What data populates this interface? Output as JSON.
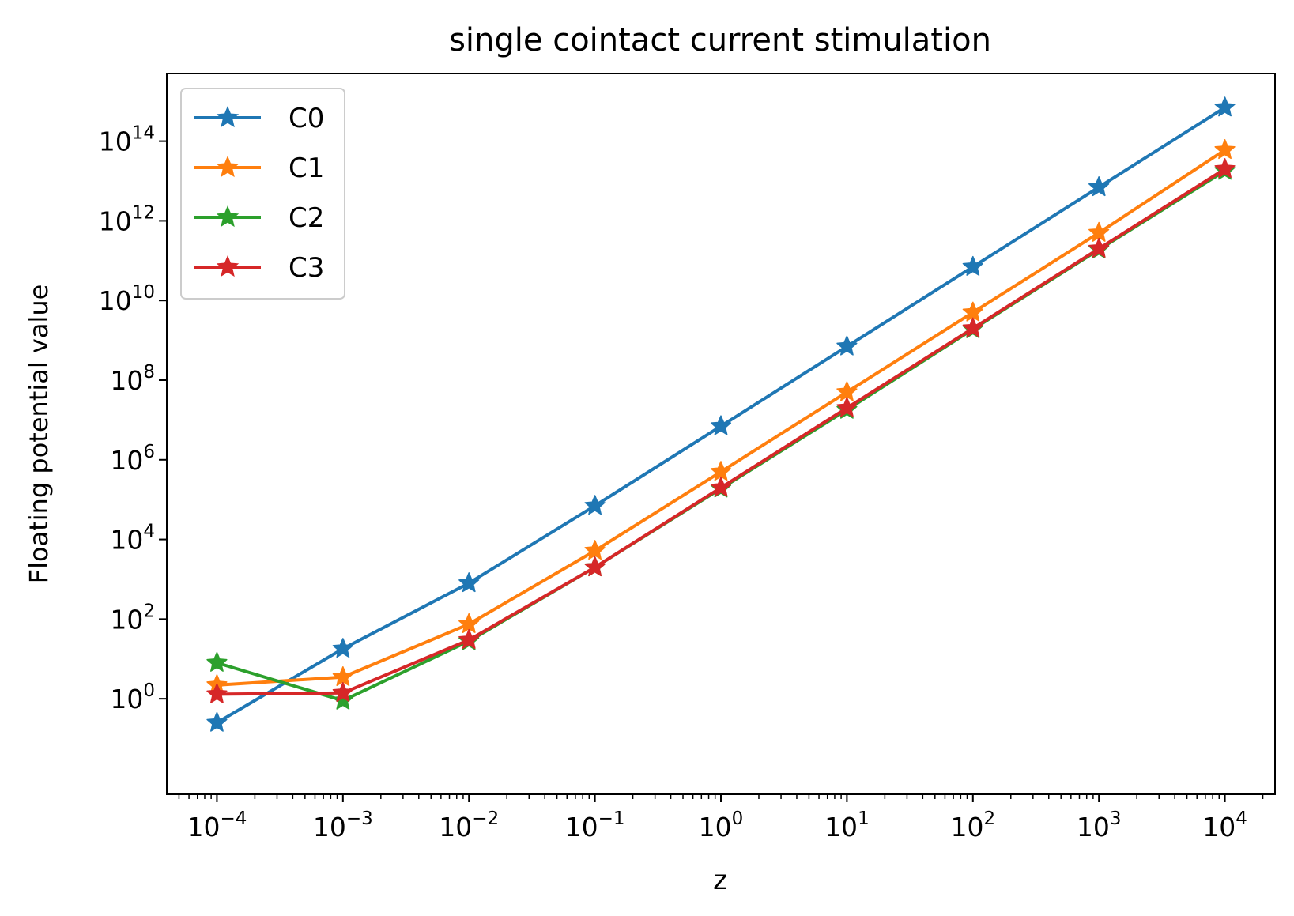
{
  "chart_data": {
    "type": "line",
    "title": "single cointact current stimulation",
    "xlabel": "z",
    "ylabel": "Floating potential value",
    "xscale": "log",
    "yscale": "log",
    "xlim": [
      4e-05,
      25000
    ],
    "ylim": [
      0.004,
      5000000000000000.0
    ],
    "grid": false,
    "legend_position": "top-left",
    "marker": "star",
    "x": [
      0.0001,
      0.001,
      0.01,
      0.1,
      1,
      10,
      100,
      1000,
      10000
    ],
    "x_ticks": [
      {
        "base": "10",
        "exp": "−4",
        "value": 0.0001
      },
      {
        "base": "10",
        "exp": "−3",
        "value": 0.001
      },
      {
        "base": "10",
        "exp": "−2",
        "value": 0.01
      },
      {
        "base": "10",
        "exp": "−1",
        "value": 0.1
      },
      {
        "base": "10",
        "exp": "0",
        "value": 1
      },
      {
        "base": "10",
        "exp": "1",
        "value": 10
      },
      {
        "base": "10",
        "exp": "2",
        "value": 100
      },
      {
        "base": "10",
        "exp": "3",
        "value": 1000
      },
      {
        "base": "10",
        "exp": "4",
        "value": 10000
      }
    ],
    "y_ticks": [
      {
        "base": "10",
        "exp": "0",
        "value": 1
      },
      {
        "base": "10",
        "exp": "2",
        "value": 100
      },
      {
        "base": "10",
        "exp": "4",
        "value": 10000
      },
      {
        "base": "10",
        "exp": "6",
        "value": 1000000.0
      },
      {
        "base": "10",
        "exp": "8",
        "value": 100000000.0
      },
      {
        "base": "10",
        "exp": "10",
        "value": 10000000000.0
      },
      {
        "base": "10",
        "exp": "12",
        "value": 1000000000000.0
      },
      {
        "base": "10",
        "exp": "14",
        "value": 100000000000000.0
      }
    ],
    "series": [
      {
        "name": "C0",
        "color": "#1f77b4",
        "values": [
          0.25,
          18,
          800,
          70000,
          7000000,
          700000000,
          70000000000,
          7000000000000,
          700000000000000
        ]
      },
      {
        "name": "C1",
        "color": "#ff7f0e",
        "values": [
          2.2,
          3.5,
          75,
          5200,
          500000,
          50000000,
          5000000000,
          500000000000,
          60000000000000
        ]
      },
      {
        "name": "C2",
        "color": "#2ca02c",
        "values": [
          8,
          0.9,
          28,
          2000,
          190000,
          18000000,
          1900000000,
          190000000000,
          18000000000000
        ]
      },
      {
        "name": "C3",
        "color": "#d62728",
        "values": [
          1.3,
          1.4,
          30,
          2000,
          200000,
          20000000,
          2000000000,
          200000000000,
          20000000000000
        ]
      }
    ]
  }
}
